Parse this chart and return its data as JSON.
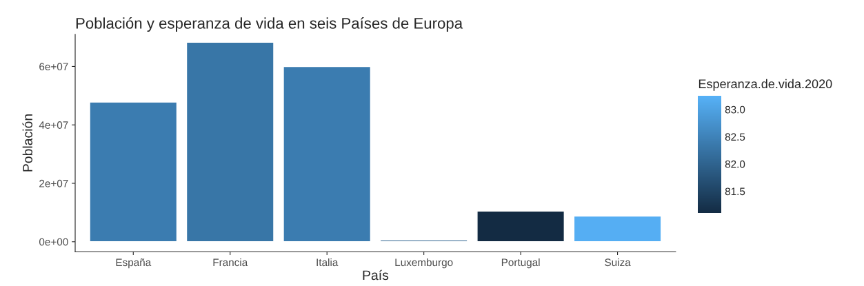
{
  "chart_data": {
    "type": "bar",
    "title": "Población y esperanza de vida en seis Países de Europa",
    "xlabel": "País",
    "ylabel": "Población",
    "clabel": "Esperanza.de.vida.2020",
    "categories": [
      "España",
      "Francia",
      "Italia",
      "Luxemburgo",
      "Portugal",
      "Suiza"
    ],
    "values": [
      47800000,
      68300000,
      60000000,
      600000,
      10500000,
      8800000
    ],
    "cvalues": [
      82.4,
      82.3,
      82.4,
      82.0,
      81.1,
      83.2
    ],
    "clim": [
      81.1,
      83.25
    ],
    "cticks": [
      {
        "value": 81.5,
        "label": "81.5"
      },
      {
        "value": 82.0,
        "label": "82.0"
      },
      {
        "value": 82.5,
        "label": "82.5"
      },
      {
        "value": 83.0,
        "label": "83.0"
      }
    ],
    "ylim": [
      -3400000,
      71000000
    ],
    "yticks": [
      {
        "value": 0,
        "label": "0e+00"
      },
      {
        "value": 20000000,
        "label": "2e+07"
      },
      {
        "value": 40000000,
        "label": "4e+07"
      },
      {
        "value": 60000000,
        "label": "6e+07"
      }
    ],
    "grid": false
  }
}
